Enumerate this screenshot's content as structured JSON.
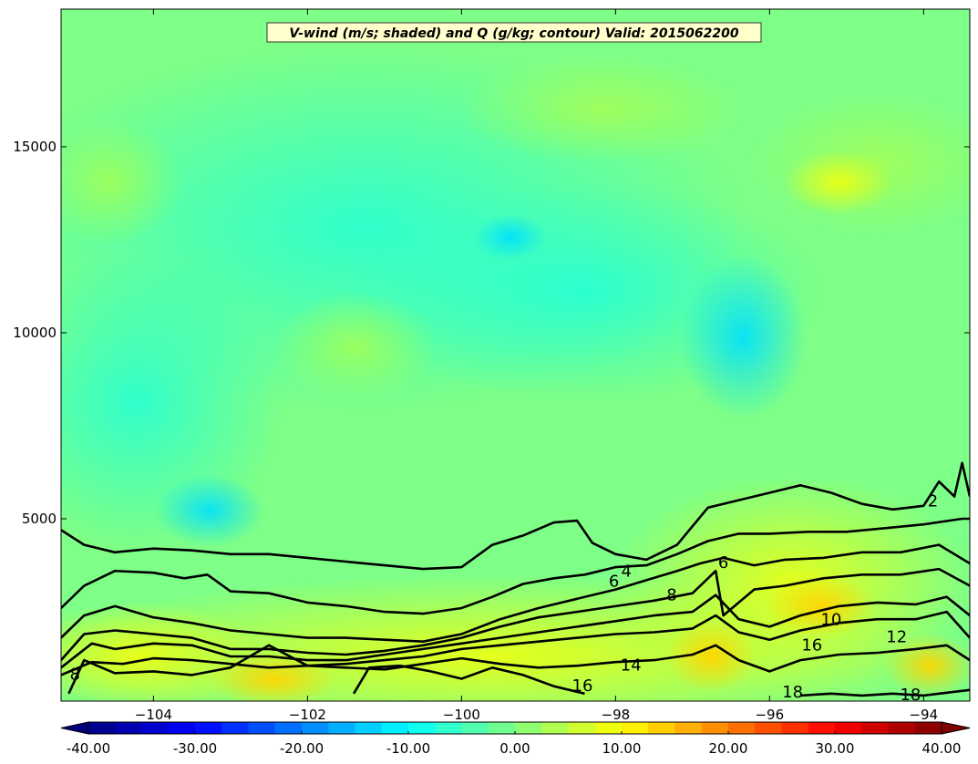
{
  "colors": {
    "frame": "#000000",
    "title_box_fill": "#ffffcc",
    "title_box_stroke": "#333333",
    "contour": "#000000",
    "colormap": [
      "#00007f",
      "#0000ff",
      "#007fff",
      "#00ffff",
      "#7fff7f",
      "#ffff00",
      "#ff7f00",
      "#ff0000",
      "#7f0000"
    ]
  },
  "chart_data": {
    "type": "heatmap",
    "title": "V-wind (m/s; shaded) and Q (g/kg; contour) Valid: 2015062200",
    "xlabel": "",
    "ylabel": "",
    "xlim": [
      -105.2,
      -93.4
    ],
    "ylim": [
      100,
      18700
    ],
    "x_ticks": [
      -104,
      -102,
      -100,
      -98,
      -96,
      -94
    ],
    "x_tick_labels": [
      "−104",
      "−102",
      "−100",
      "−98",
      "−96",
      "−94"
    ],
    "y_ticks": [
      5000,
      10000,
      15000
    ],
    "y_tick_labels": [
      "5000",
      "10000",
      "15000"
    ],
    "shaded": {
      "variable": "V-wind",
      "units": "m/s",
      "range": [
        -40,
        40
      ],
      "step": 5,
      "colorbar_ticks": [
        -40,
        -30,
        -20,
        -10,
        0,
        10,
        20,
        30,
        40
      ],
      "colorbar_tick_labels": [
        "-40.00",
        "-30.00",
        "-20.00",
        "-10.00",
        "0.00",
        "10.00",
        "20.00",
        "30.00",
        "40.00"
      ],
      "colorbar_extend": "both"
    },
    "contours": {
      "variable": "Q",
      "units": "g/kg",
      "levels": [
        2,
        4,
        6,
        8,
        10,
        12,
        14,
        16,
        18
      ],
      "lines": [
        {
          "level": 2,
          "points": [
            [
              -105.2,
              4700
            ],
            [
              -104.9,
              4300
            ],
            [
              -104.5,
              4100
            ],
            [
              -104.0,
              4200
            ],
            [
              -103.5,
              4150
            ],
            [
              -103.0,
              4050
            ],
            [
              -102.5,
              4050
            ],
            [
              -102.0,
              3950
            ],
            [
              -101.5,
              3850
            ],
            [
              -101.0,
              3750
            ],
            [
              -100.5,
              3650
            ],
            [
              -100.0,
              3700
            ],
            [
              -99.6,
              4300
            ],
            [
              -99.2,
              4550
            ],
            [
              -98.8,
              4900
            ],
            [
              -98.5,
              4950
            ],
            [
              -98.3,
              4350
            ],
            [
              -98.0,
              4050
            ],
            [
              -97.6,
              3900
            ],
            [
              -97.2,
              4300
            ],
            [
              -96.8,
              5300
            ],
            [
              -96.4,
              5500
            ],
            [
              -96.0,
              5700
            ],
            [
              -95.6,
              5900
            ],
            [
              -95.2,
              5700
            ],
            [
              -94.8,
              5400
            ],
            [
              -94.4,
              5250
            ],
            [
              -94.0,
              5350
            ],
            [
              -93.8,
              6000
            ],
            [
              -93.6,
              5600
            ],
            [
              -93.5,
              6500
            ],
            [
              -93.4,
              5600
            ]
          ]
        },
        {
          "level": 4,
          "points": [
            [
              -105.2,
              2600
            ],
            [
              -104.9,
              3200
            ],
            [
              -104.5,
              3600
            ],
            [
              -104.0,
              3550
            ],
            [
              -103.6,
              3400
            ],
            [
              -103.3,
              3500
            ],
            [
              -103.0,
              3050
            ],
            [
              -102.5,
              3000
            ],
            [
              -102.0,
              2750
            ],
            [
              -101.5,
              2650
            ],
            [
              -101.0,
              2500
            ],
            [
              -100.5,
              2450
            ],
            [
              -100.0,
              2600
            ],
            [
              -99.6,
              2900
            ],
            [
              -99.2,
              3250
            ],
            [
              -98.8,
              3400
            ],
            [
              -98.4,
              3500
            ],
            [
              -98.0,
              3700
            ],
            [
              -97.6,
              3750
            ],
            [
              -97.2,
              4050
            ],
            [
              -96.8,
              4400
            ],
            [
              -96.4,
              4600
            ],
            [
              -96.0,
              4600
            ],
            [
              -95.5,
              4650
            ],
            [
              -95.0,
              4650
            ],
            [
              -94.5,
              4750
            ],
            [
              -94.0,
              4850
            ],
            [
              -93.5,
              5000
            ],
            [
              -93.4,
              5000
            ]
          ]
        },
        {
          "level": 6,
          "points": [
            [
              -105.2,
              1800
            ],
            [
              -104.9,
              2400
            ],
            [
              -104.5,
              2650
            ],
            [
              -104.0,
              2350
            ],
            [
              -103.5,
              2200
            ],
            [
              -103.0,
              2000
            ],
            [
              -102.5,
              1900
            ],
            [
              -102.0,
              1800
            ],
            [
              -101.5,
              1800
            ],
            [
              -101.0,
              1750
            ],
            [
              -100.5,
              1700
            ],
            [
              -100.0,
              1900
            ],
            [
              -99.5,
              2300
            ],
            [
              -99.0,
              2600
            ],
            [
              -98.5,
              2850
            ],
            [
              -98.0,
              3100
            ],
            [
              -97.6,
              3350
            ],
            [
              -97.2,
              3600
            ],
            [
              -96.9,
              3800
            ],
            [
              -96.6,
              3950
            ],
            [
              -96.2,
              3750
            ],
            [
              -95.8,
              3900
            ],
            [
              -95.3,
              3950
            ],
            [
              -94.8,
              4100
            ],
            [
              -94.3,
              4100
            ],
            [
              -93.8,
              4300
            ],
            [
              -93.4,
              3800
            ]
          ]
        },
        {
          "level": 8,
          "points": [
            [
              -105.2,
              1200
            ],
            [
              -104.9,
              1900
            ],
            [
              -104.5,
              2000
            ],
            [
              -104.0,
              1900
            ],
            [
              -103.5,
              1800
            ],
            [
              -103.0,
              1500
            ],
            [
              -102.5,
              1500
            ],
            [
              -102.0,
              1400
            ],
            [
              -101.5,
              1350
            ],
            [
              -101.0,
              1450
            ],
            [
              -100.5,
              1600
            ],
            [
              -100.0,
              1800
            ],
            [
              -99.5,
              2100
            ],
            [
              -99.0,
              2350
            ],
            [
              -98.5,
              2500
            ],
            [
              -98.0,
              2650
            ],
            [
              -97.5,
              2800
            ],
            [
              -97.0,
              3000
            ],
            [
              -96.7,
              3600
            ],
            [
              -96.6,
              2400
            ],
            [
              -96.2,
              3100
            ],
            [
              -95.8,
              3200
            ],
            [
              -95.3,
              3400
            ],
            [
              -94.8,
              3500
            ],
            [
              -94.3,
              3500
            ],
            [
              -93.8,
              3650
            ],
            [
              -93.4,
              3200
            ]
          ]
        },
        {
          "level": 10,
          "points": [
            [
              -105.2,
              1000
            ],
            [
              -104.8,
              1650
            ],
            [
              -104.5,
              1500
            ],
            [
              -104.0,
              1650
            ],
            [
              -103.5,
              1600
            ],
            [
              -103.0,
              1300
            ],
            [
              -102.5,
              1300
            ],
            [
              -102.0,
              1200
            ],
            [
              -101.5,
              1200
            ],
            [
              -101.0,
              1350
            ],
            [
              -100.5,
              1500
            ],
            [
              -100.0,
              1650
            ],
            [
              -99.5,
              1800
            ],
            [
              -99.0,
              1950
            ],
            [
              -98.5,
              2100
            ],
            [
              -98.0,
              2250
            ],
            [
              -97.5,
              2400
            ],
            [
              -97.0,
              2500
            ],
            [
              -96.7,
              2950
            ],
            [
              -96.4,
              2300
            ],
            [
              -96.0,
              2100
            ],
            [
              -95.6,
              2400
            ],
            [
              -95.1,
              2650
            ],
            [
              -94.6,
              2750
            ],
            [
              -94.1,
              2700
            ],
            [
              -93.7,
              2900
            ],
            [
              -93.4,
              2400
            ]
          ]
        },
        {
          "level": 12,
          "points": [
            [
              -105.2,
              800
            ],
            [
              -104.8,
              1150
            ],
            [
              -104.4,
              1100
            ],
            [
              -104.0,
              1250
            ],
            [
              -103.5,
              1200
            ],
            [
              -103.0,
              1100
            ],
            [
              -102.5,
              1000
            ],
            [
              -102.0,
              1050
            ],
            [
              -101.5,
              1100
            ],
            [
              -101.0,
              1200
            ],
            [
              -100.5,
              1300
            ],
            [
              -100.0,
              1500
            ],
            [
              -99.5,
              1600
            ],
            [
              -99.0,
              1700
            ],
            [
              -98.5,
              1800
            ],
            [
              -98.0,
              1900
            ],
            [
              -97.5,
              1950
            ],
            [
              -97.0,
              2050
            ],
            [
              -96.7,
              2400
            ],
            [
              -96.4,
              1950
            ],
            [
              -96.0,
              1750
            ],
            [
              -95.6,
              2000
            ],
            [
              -95.1,
              2200
            ],
            [
              -94.6,
              2300
            ],
            [
              -94.1,
              2300
            ],
            [
              -93.7,
              2500
            ],
            [
              -93.4,
              1800
            ]
          ]
        },
        {
          "level": 14,
          "points": [
            [
              -105.1,
              300
            ],
            [
              -104.9,
              1200
            ],
            [
              -104.5,
              850
            ],
            [
              -104.0,
              900
            ],
            [
              -103.5,
              800
            ],
            [
              -103.0,
              1000
            ],
            [
              -102.5,
              1600
            ],
            [
              -102.0,
              1050
            ],
            [
              -101.5,
              1000
            ],
            [
              -101.0,
              950
            ],
            [
              -100.5,
              1100
            ],
            [
              -100.0,
              1250
            ],
            [
              -99.5,
              1100
            ],
            [
              -99.0,
              1000
            ],
            [
              -98.5,
              1050
            ],
            [
              -98.0,
              1150
            ],
            [
              -97.5,
              1200
            ],
            [
              -97.0,
              1350
            ],
            [
              -96.7,
              1600
            ],
            [
              -96.4,
              1200
            ],
            [
              -96.0,
              900
            ],
            [
              -95.6,
              1200
            ],
            [
              -95.1,
              1350
            ],
            [
              -94.6,
              1400
            ],
            [
              -94.1,
              1500
            ],
            [
              -93.7,
              1600
            ],
            [
              -93.4,
              1200
            ]
          ]
        },
        {
          "level": 16,
          "points": [
            [
              -101.4,
              300
            ],
            [
              -101.2,
              1000
            ],
            [
              -100.8,
              1050
            ],
            [
              -100.4,
              900
            ],
            [
              -100.0,
              700
            ],
            [
              -99.6,
              1000
            ],
            [
              -99.2,
              800
            ],
            [
              -98.8,
              500
            ],
            [
              -98.4,
              300
            ]
          ]
        },
        {
          "level": 18,
          "points": [
            [
              -95.6,
              250
            ],
            [
              -95.2,
              300
            ],
            [
              -94.8,
              250
            ],
            [
              -94.4,
              300
            ],
            [
              -94.0,
              250
            ],
            [
              -93.6,
              350
            ],
            [
              -93.4,
              400
            ]
          ]
        }
      ],
      "labels": [
        {
          "text": "2",
          "x": -93.88,
          "y": 5330
        },
        {
          "text": "4",
          "x": -97.86,
          "y": 3440
        },
        {
          "text": "6",
          "x": -98.02,
          "y": 3180
        },
        {
          "text": "8",
          "x": -97.27,
          "y": 2810
        },
        {
          "text": "6",
          "x": -96.6,
          "y": 3680
        },
        {
          "text": "10",
          "x": -95.2,
          "y": 2150
        },
        {
          "text": "16",
          "x": -95.45,
          "y": 1460
        },
        {
          "text": "12",
          "x": -94.35,
          "y": 1680
        },
        {
          "text": "14",
          "x": -97.8,
          "y": 920
        },
        {
          "text": "16",
          "x": -98.43,
          "y": 370
        },
        {
          "text": "18",
          "x": -95.7,
          "y": 200
        },
        {
          "text": "18",
          "x": -94.17,
          "y": 130
        },
        {
          "text": "8",
          "x": -105.02,
          "y": 680
        }
      ]
    }
  }
}
